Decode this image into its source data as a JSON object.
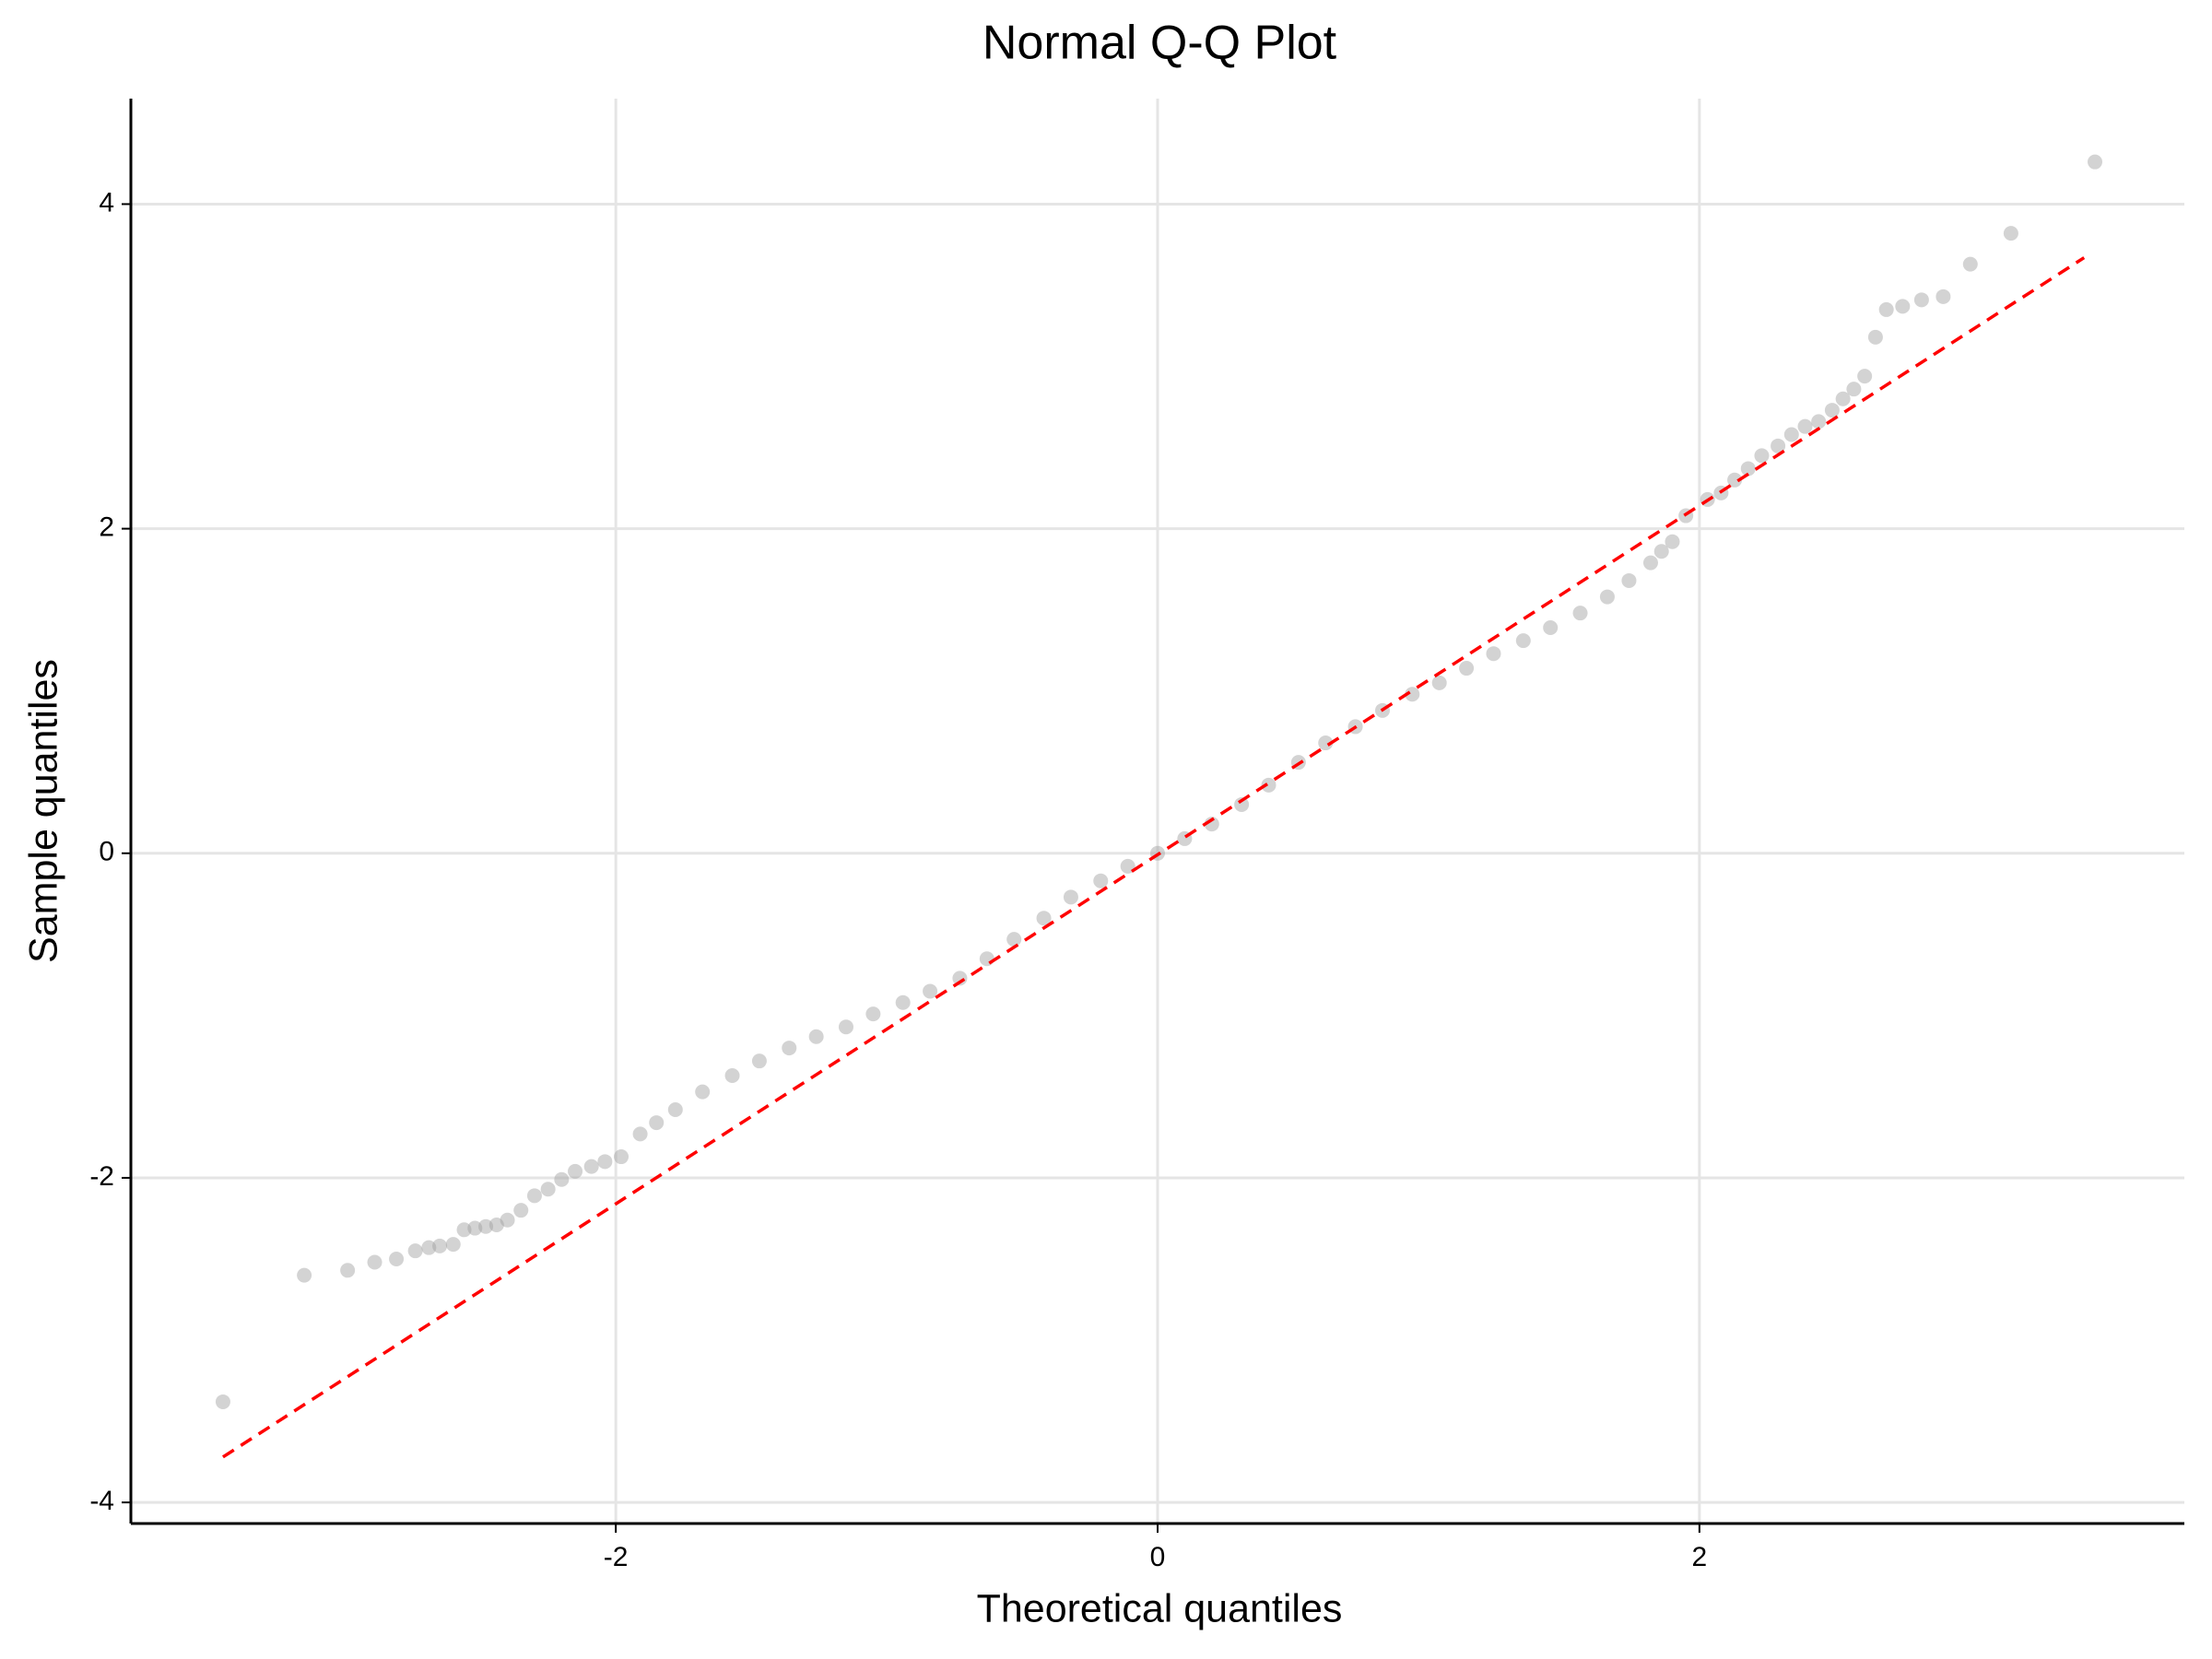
{
  "chart_data": {
    "type": "scatter",
    "title": "Normal Q-Q Plot",
    "x_label": "Theoretical quantiles",
    "y_label": "Sample quantiles",
    "point_color": "#9e9e9e",
    "line_color": "#ff0000",
    "grid": true,
    "xlim": [
      -3.79,
      3.79
    ],
    "ylim": [
      -4.13,
      4.65
    ],
    "xticks": [
      -2,
      0,
      2
    ],
    "yticks": [
      -4,
      -2,
      0,
      2,
      4
    ],
    "x": [
      -3.45,
      -3.15,
      -2.99,
      -2.89,
      -2.81,
      -2.74,
      -2.69,
      -2.65,
      -2.6,
      -2.56,
      -2.52,
      -2.48,
      -2.44,
      -2.4,
      -2.35,
      -2.3,
      -2.25,
      -2.2,
      -2.15,
      -2.09,
      -2.04,
      -1.98,
      -1.91,
      -1.85,
      -1.78,
      -1.68,
      -1.57,
      -1.47,
      -1.36,
      -1.26,
      -1.15,
      -1.05,
      -0.94,
      -0.84,
      -0.73,
      -0.63,
      -0.53,
      -0.42,
      -0.32,
      -0.21,
      -0.11,
      0,
      0.1,
      0.2,
      0.31,
      0.41,
      0.52,
      0.62,
      0.73,
      0.83,
      0.94,
      1.04,
      1.14,
      1.24,
      1.35,
      1.45,
      1.56,
      1.66,
      1.74,
      1.82,
      1.86,
      1.9,
      1.95,
      2.03,
      2.08,
      2.13,
      2.18,
      2.23,
      2.29,
      2.34,
      2.39,
      2.44,
      2.49,
      2.53,
      2.57,
      2.61,
      2.65,
      2.69,
      2.75,
      2.82,
      2.9,
      3.0,
      3.15,
      3.46
    ],
    "y": [
      -3.38,
      -2.6,
      -2.57,
      -2.52,
      -2.5,
      -2.45,
      -2.43,
      -2.42,
      -2.41,
      -2.32,
      -2.31,
      -2.3,
      -2.29,
      -2.26,
      -2.2,
      -2.11,
      -2.07,
      -2.01,
      -1.96,
      -1.93,
      -1.9,
      -1.87,
      -1.73,
      -1.66,
      -1.58,
      -1.47,
      -1.37,
      -1.28,
      -1.2,
      -1.13,
      -1.07,
      -0.99,
      -0.92,
      -0.85,
      -0.77,
      -0.65,
      -0.53,
      -0.4,
      -0.27,
      -0.17,
      -0.08,
      0,
      0.09,
      0.18,
      0.3,
      0.42,
      0.56,
      0.68,
      0.78,
      0.88,
      0.98,
      1.05,
      1.14,
      1.23,
      1.31,
      1.39,
      1.48,
      1.58,
      1.68,
      1.79,
      1.86,
      1.92,
      2.08,
      2.18,
      2.22,
      2.3,
      2.37,
      2.45,
      2.51,
      2.58,
      2.63,
      2.66,
      2.73,
      2.8,
      2.86,
      2.94,
      3.18,
      3.35,
      3.37,
      3.41,
      3.43,
      3.63,
      3.82,
      4.26
    ],
    "line": {
      "x": [
        -3.45,
        3.42
      ],
      "y": [
        -3.72,
        3.67
      ]
    }
  }
}
